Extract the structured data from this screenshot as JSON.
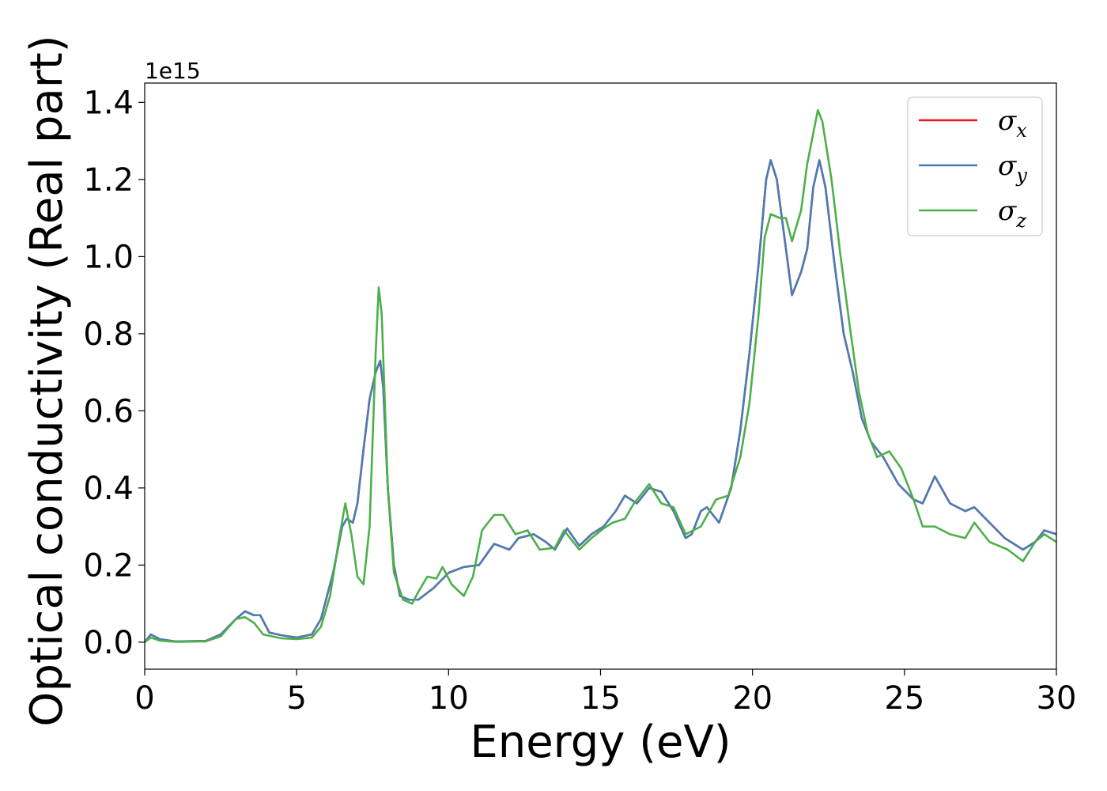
{
  "chart_data": {
    "type": "line",
    "xlabel": "Energy (eV)",
    "ylabel": "Optical conductivity (Real part)",
    "y_offset_label": "1e15",
    "xlim": [
      0,
      30
    ],
    "ylim": [
      -0.07,
      1.45
    ],
    "x_ticks": [
      0,
      5,
      10,
      15,
      20,
      25,
      30
    ],
    "x_tick_labels": [
      "0",
      "5",
      "10",
      "15",
      "20",
      "25",
      "30"
    ],
    "y_ticks": [
      0.0,
      0.2,
      0.4,
      0.6,
      0.8,
      1.0,
      1.2,
      1.4
    ],
    "y_tick_labels": [
      "0.0",
      "0.2",
      "0.4",
      "0.6",
      "0.8",
      "1.0",
      "1.2",
      "1.4"
    ],
    "grid": false,
    "legend_position": "top-right",
    "series": [
      {
        "name": "σx",
        "legend_base": "σ",
        "legend_sub": "x",
        "color": "#e41a1c",
        "points": [
          [
            0,
            0.0
          ],
          [
            0.2,
            0.02
          ],
          [
            0.5,
            0.008
          ],
          [
            1,
            0.002
          ],
          [
            2,
            0.003
          ],
          [
            2.5,
            0.02
          ],
          [
            3,
            0.06
          ],
          [
            3.3,
            0.08
          ],
          [
            3.6,
            0.07
          ],
          [
            3.8,
            0.07
          ],
          [
            4.1,
            0.025
          ],
          [
            4.5,
            0.018
          ],
          [
            5,
            0.012
          ],
          [
            5.5,
            0.02
          ],
          [
            5.8,
            0.06
          ],
          [
            6.2,
            0.18
          ],
          [
            6.5,
            0.3
          ],
          [
            6.65,
            0.32
          ],
          [
            6.85,
            0.31
          ],
          [
            7,
            0.36
          ],
          [
            7.2,
            0.5
          ],
          [
            7.4,
            0.63
          ],
          [
            7.6,
            0.7
          ],
          [
            7.75,
            0.73
          ],
          [
            7.85,
            0.66
          ],
          [
            8.0,
            0.4
          ],
          [
            8.2,
            0.2
          ],
          [
            8.4,
            0.12
          ],
          [
            8.7,
            0.11
          ],
          [
            9,
            0.11
          ],
          [
            9.5,
            0.14
          ],
          [
            10,
            0.18
          ],
          [
            10.5,
            0.195
          ],
          [
            11,
            0.2
          ],
          [
            11.5,
            0.255
          ],
          [
            12,
            0.24
          ],
          [
            12.3,
            0.27
          ],
          [
            12.8,
            0.28
          ],
          [
            13.2,
            0.26
          ],
          [
            13.5,
            0.24
          ],
          [
            13.9,
            0.295
          ],
          [
            14.3,
            0.25
          ],
          [
            14.7,
            0.28
          ],
          [
            15.1,
            0.3
          ],
          [
            15.5,
            0.34
          ],
          [
            15.8,
            0.38
          ],
          [
            16.2,
            0.36
          ],
          [
            16.6,
            0.4
          ],
          [
            17,
            0.39
          ],
          [
            17.4,
            0.34
          ],
          [
            17.8,
            0.27
          ],
          [
            18.0,
            0.28
          ],
          [
            18.3,
            0.34
          ],
          [
            18.5,
            0.35
          ],
          [
            18.9,
            0.31
          ],
          [
            19.3,
            0.4
          ],
          [
            19.6,
            0.55
          ],
          [
            19.9,
            0.75
          ],
          [
            20.2,
            0.98
          ],
          [
            20.45,
            1.2
          ],
          [
            20.6,
            1.25
          ],
          [
            20.8,
            1.2
          ],
          [
            21.0,
            1.08
          ],
          [
            21.3,
            0.9
          ],
          [
            21.6,
            0.96
          ],
          [
            21.8,
            1.02
          ],
          [
            22.0,
            1.18
          ],
          [
            22.2,
            1.25
          ],
          [
            22.4,
            1.18
          ],
          [
            22.7,
            0.98
          ],
          [
            23.0,
            0.8
          ],
          [
            23.3,
            0.7
          ],
          [
            23.6,
            0.58
          ],
          [
            23.9,
            0.52
          ],
          [
            24.3,
            0.48
          ],
          [
            24.8,
            0.41
          ],
          [
            25.3,
            0.37
          ],
          [
            25.6,
            0.36
          ],
          [
            26.0,
            0.43
          ],
          [
            26.5,
            0.36
          ],
          [
            27,
            0.34
          ],
          [
            27.3,
            0.35
          ],
          [
            27.8,
            0.31
          ],
          [
            28.3,
            0.27
          ],
          [
            28.9,
            0.24
          ],
          [
            29.3,
            0.26
          ],
          [
            29.6,
            0.29
          ],
          [
            30,
            0.28
          ]
        ]
      },
      {
        "name": "σy",
        "legend_base": "σ",
        "legend_sub": "y",
        "color": "#4a7db5",
        "points": [
          [
            0,
            0.0
          ],
          [
            0.2,
            0.02
          ],
          [
            0.5,
            0.008
          ],
          [
            1,
            0.002
          ],
          [
            2,
            0.003
          ],
          [
            2.5,
            0.02
          ],
          [
            3,
            0.06
          ],
          [
            3.3,
            0.08
          ],
          [
            3.6,
            0.07
          ],
          [
            3.8,
            0.07
          ],
          [
            4.1,
            0.025
          ],
          [
            4.5,
            0.018
          ],
          [
            5,
            0.012
          ],
          [
            5.5,
            0.02
          ],
          [
            5.8,
            0.06
          ],
          [
            6.2,
            0.18
          ],
          [
            6.5,
            0.3
          ],
          [
            6.65,
            0.32
          ],
          [
            6.85,
            0.31
          ],
          [
            7,
            0.36
          ],
          [
            7.2,
            0.5
          ],
          [
            7.4,
            0.63
          ],
          [
            7.6,
            0.7
          ],
          [
            7.75,
            0.73
          ],
          [
            7.85,
            0.66
          ],
          [
            8.0,
            0.4
          ],
          [
            8.2,
            0.2
          ],
          [
            8.4,
            0.12
          ],
          [
            8.7,
            0.11
          ],
          [
            9,
            0.11
          ],
          [
            9.5,
            0.14
          ],
          [
            10,
            0.18
          ],
          [
            10.5,
            0.195
          ],
          [
            11,
            0.2
          ],
          [
            11.5,
            0.255
          ],
          [
            12,
            0.24
          ],
          [
            12.3,
            0.27
          ],
          [
            12.8,
            0.28
          ],
          [
            13.2,
            0.26
          ],
          [
            13.5,
            0.24
          ],
          [
            13.9,
            0.295
          ],
          [
            14.3,
            0.25
          ],
          [
            14.7,
            0.28
          ],
          [
            15.1,
            0.3
          ],
          [
            15.5,
            0.34
          ],
          [
            15.8,
            0.38
          ],
          [
            16.2,
            0.36
          ],
          [
            16.6,
            0.4
          ],
          [
            17,
            0.39
          ],
          [
            17.4,
            0.34
          ],
          [
            17.8,
            0.27
          ],
          [
            18.0,
            0.28
          ],
          [
            18.3,
            0.34
          ],
          [
            18.5,
            0.35
          ],
          [
            18.9,
            0.31
          ],
          [
            19.3,
            0.4
          ],
          [
            19.6,
            0.55
          ],
          [
            19.9,
            0.75
          ],
          [
            20.2,
            0.98
          ],
          [
            20.45,
            1.2
          ],
          [
            20.6,
            1.25
          ],
          [
            20.8,
            1.2
          ],
          [
            21.0,
            1.08
          ],
          [
            21.3,
            0.9
          ],
          [
            21.6,
            0.96
          ],
          [
            21.8,
            1.02
          ],
          [
            22.0,
            1.18
          ],
          [
            22.2,
            1.25
          ],
          [
            22.4,
            1.18
          ],
          [
            22.7,
            0.98
          ],
          [
            23.0,
            0.8
          ],
          [
            23.3,
            0.7
          ],
          [
            23.6,
            0.58
          ],
          [
            23.9,
            0.52
          ],
          [
            24.3,
            0.48
          ],
          [
            24.8,
            0.41
          ],
          [
            25.3,
            0.37
          ],
          [
            25.6,
            0.36
          ],
          [
            26.0,
            0.43
          ],
          [
            26.5,
            0.36
          ],
          [
            27,
            0.34
          ],
          [
            27.3,
            0.35
          ],
          [
            27.8,
            0.31
          ],
          [
            28.3,
            0.27
          ],
          [
            28.9,
            0.24
          ],
          [
            29.3,
            0.26
          ],
          [
            29.6,
            0.29
          ],
          [
            30,
            0.28
          ]
        ]
      },
      {
        "name": "σz",
        "legend_base": "σ",
        "legend_sub": "z",
        "color": "#4daf4a",
        "points": [
          [
            0,
            0.0
          ],
          [
            0.2,
            0.012
          ],
          [
            0.5,
            0.004
          ],
          [
            1,
            0.001
          ],
          [
            2,
            0.002
          ],
          [
            2.5,
            0.015
          ],
          [
            3,
            0.06
          ],
          [
            3.3,
            0.065
          ],
          [
            3.6,
            0.05
          ],
          [
            3.9,
            0.02
          ],
          [
            4.5,
            0.01
          ],
          [
            5,
            0.008
          ],
          [
            5.5,
            0.012
          ],
          [
            5.8,
            0.04
          ],
          [
            6.1,
            0.12
          ],
          [
            6.4,
            0.27
          ],
          [
            6.6,
            0.36
          ],
          [
            6.8,
            0.28
          ],
          [
            7.0,
            0.17
          ],
          [
            7.2,
            0.15
          ],
          [
            7.4,
            0.3
          ],
          [
            7.6,
            0.75
          ],
          [
            7.7,
            0.92
          ],
          [
            7.8,
            0.85
          ],
          [
            8.0,
            0.4
          ],
          [
            8.2,
            0.18
          ],
          [
            8.5,
            0.11
          ],
          [
            8.8,
            0.1
          ],
          [
            9.0,
            0.13
          ],
          [
            9.3,
            0.17
          ],
          [
            9.6,
            0.165
          ],
          [
            9.8,
            0.195
          ],
          [
            10.1,
            0.15
          ],
          [
            10.5,
            0.12
          ],
          [
            10.8,
            0.17
          ],
          [
            11.1,
            0.29
          ],
          [
            11.5,
            0.33
          ],
          [
            11.8,
            0.33
          ],
          [
            12.2,
            0.28
          ],
          [
            12.6,
            0.29
          ],
          [
            13,
            0.24
          ],
          [
            13.5,
            0.245
          ],
          [
            13.8,
            0.29
          ],
          [
            14.3,
            0.24
          ],
          [
            14.7,
            0.27
          ],
          [
            15.1,
            0.295
          ],
          [
            15.4,
            0.31
          ],
          [
            15.8,
            0.32
          ],
          [
            16.1,
            0.36
          ],
          [
            16.6,
            0.41
          ],
          [
            17,
            0.36
          ],
          [
            17.4,
            0.35
          ],
          [
            17.8,
            0.28
          ],
          [
            18.3,
            0.3
          ],
          [
            18.8,
            0.37
          ],
          [
            19.2,
            0.38
          ],
          [
            19.6,
            0.48
          ],
          [
            19.9,
            0.62
          ],
          [
            20.2,
            0.85
          ],
          [
            20.4,
            1.05
          ],
          [
            20.6,
            1.11
          ],
          [
            20.9,
            1.1
          ],
          [
            21.1,
            1.1
          ],
          [
            21.3,
            1.04
          ],
          [
            21.6,
            1.12
          ],
          [
            21.8,
            1.24
          ],
          [
            22.0,
            1.32
          ],
          [
            22.15,
            1.38
          ],
          [
            22.3,
            1.35
          ],
          [
            22.6,
            1.2
          ],
          [
            22.9,
            1.0
          ],
          [
            23.2,
            0.82
          ],
          [
            23.5,
            0.65
          ],
          [
            23.8,
            0.54
          ],
          [
            24.1,
            0.48
          ],
          [
            24.5,
            0.495
          ],
          [
            24.9,
            0.45
          ],
          [
            25.3,
            0.37
          ],
          [
            25.6,
            0.3
          ],
          [
            26.0,
            0.3
          ],
          [
            26.5,
            0.28
          ],
          [
            27.0,
            0.27
          ],
          [
            27.3,
            0.31
          ],
          [
            27.8,
            0.26
          ],
          [
            28.4,
            0.24
          ],
          [
            28.9,
            0.21
          ],
          [
            29.3,
            0.26
          ],
          [
            29.6,
            0.28
          ],
          [
            30,
            0.26
          ]
        ]
      }
    ]
  }
}
